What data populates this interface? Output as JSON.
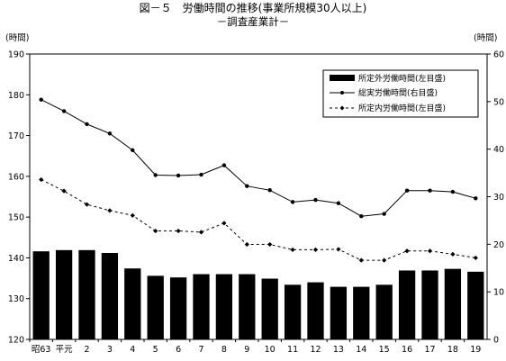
{
  "title": "図－５　労働時間の推移(事業所規模30人以上)",
  "subtitle": "－調査産業計－",
  "left_unit": "(時間)",
  "right_unit": "(時間)",
  "legend": {
    "bar_label": "所定外労働時間(左目盛)",
    "total_label": "総実労働時間(右目盛)",
    "scheduled_label": "所定内労働時間(左目盛)"
  },
  "colors": {
    "bar": "#000000",
    "line": "#000000",
    "frame": "#000000"
  },
  "chart_data": {
    "type": "bar",
    "categories": [
      "昭63",
      "平元",
      "2",
      "3",
      "4",
      "5",
      "6",
      "7",
      "8",
      "9",
      "10",
      "11",
      "12",
      "13",
      "14",
      "15",
      "16",
      "17",
      "18",
      "19"
    ],
    "y_left": {
      "lim": [
        120,
        190
      ],
      "ticks": [
        120,
        130,
        140,
        150,
        160,
        170,
        180,
        190
      ]
    },
    "y_right": {
      "lim": [
        0,
        60
      ],
      "ticks": [
        0,
        10,
        20,
        30,
        40,
        50,
        60
      ]
    },
    "grid": false,
    "legend_position": "top-right",
    "series": [
      {
        "name": "所定外労働時間(左目盛)",
        "type": "bar",
        "axis": "left",
        "values": [
          141.6,
          141.9,
          141.9,
          141.2,
          137.4,
          135.6,
          135.2,
          136.0,
          136.0,
          136.0,
          134.9,
          133.4,
          134.0,
          132.9,
          132.9,
          133.4,
          136.9,
          136.9,
          137.3,
          136.6
        ]
      },
      {
        "name": "総実労働時間(右目盛)",
        "type": "line",
        "axis": "left",
        "style": "solid",
        "marker": "dot",
        "values": [
          178.8,
          176.0,
          172.8,
          170.5,
          166.4,
          160.3,
          160.2,
          160.4,
          162.7,
          157.6,
          156.6,
          153.7,
          154.2,
          153.4,
          150.2,
          150.8,
          156.5,
          156.5,
          156.2,
          154.6
        ]
      },
      {
        "name": "所定内労働時間(左目盛)",
        "type": "line",
        "axis": "left",
        "style": "dashed",
        "marker": "diamond",
        "values": [
          159.2,
          156.4,
          153.1,
          151.6,
          150.4,
          146.6,
          146.6,
          146.3,
          148.5,
          143.3,
          143.3,
          142.0,
          142.0,
          142.1,
          139.4,
          139.4,
          141.7,
          141.7,
          140.9,
          140.0
        ]
      }
    ]
  }
}
